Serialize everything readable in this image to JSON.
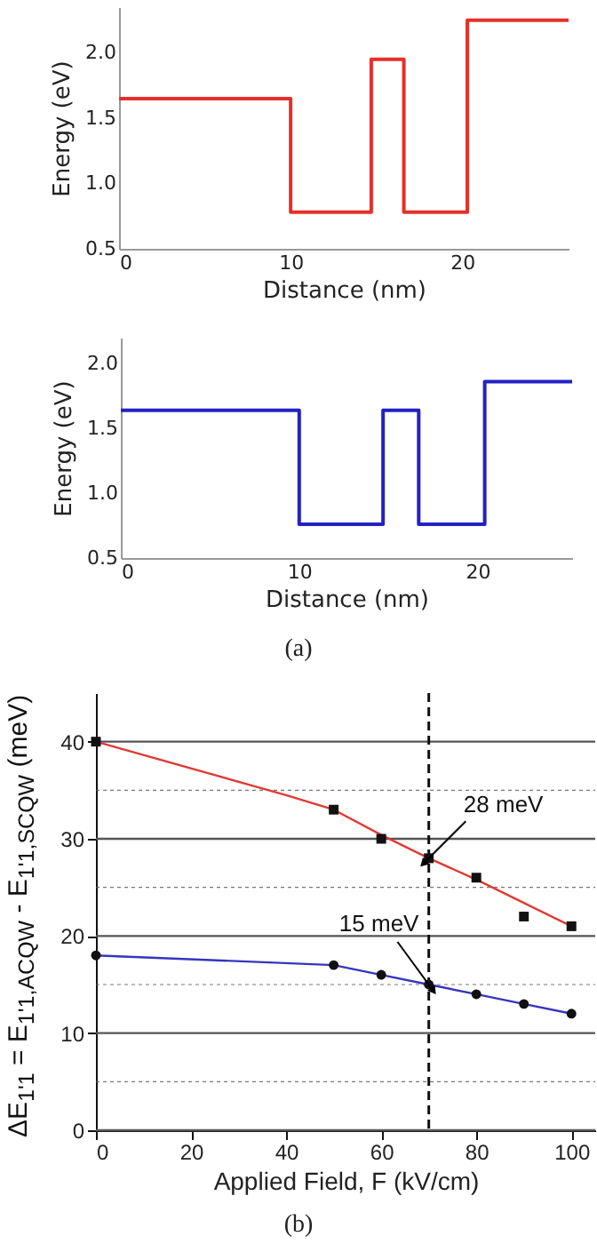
{
  "chart_data": [
    {
      "type": "step",
      "x": [
        0,
        10,
        14.7,
        16.6,
        20.3,
        26.2
      ],
      "xlabel": "Distance (nm)",
      "ylabel": "Energy (eV)",
      "series": [
        {
          "color": "#e5302a",
          "values": [
            1.65,
            0.78,
            1.95,
            0.78,
            2.25,
            2.25
          ]
        }
      ],
      "xlim": [
        0,
        26.2
      ],
      "xticks": [
        0,
        10,
        20
      ],
      "ylim": [
        0.5,
        2.35
      ],
      "yticks": [
        0.5,
        {
          "value": 1,
          "label": "1.0"
        },
        1.5,
        {
          "value": 2,
          "label": "2.0"
        }
      ]
    },
    {
      "type": "step",
      "x": [
        0,
        10,
        14.7,
        16.7,
        20.4,
        25.3
      ],
      "xlabel": "Distance (nm)",
      "ylabel": "Energy (eV)",
      "series": [
        {
          "color": "#2222c4",
          "values": [
            1.64,
            0.76,
            1.64,
            0.76,
            1.86,
            1.86
          ]
        }
      ],
      "xlim": [
        0,
        25.3
      ],
      "xticks": [
        0,
        10,
        20
      ],
      "ylim": [
        0.5,
        2.2
      ],
      "yticks": [
        0.5,
        {
          "value": 1,
          "label": "1.0"
        },
        1.5,
        {
          "value": 2,
          "label": "2.0"
        }
      ],
      "annotations": [
        "(a)"
      ]
    },
    {
      "type": "line",
      "xlabel": "Applied Field, F (kV/cm)",
      "ylabel": "ΔE$_{1'1}$ = E$_{1'1,ACQW}$ - E$_{1'1,SCQW}$ (meV)",
      "series": [
        {
          "color": "#e03a35",
          "marker": "none",
          "x": [
            0,
            40,
            50,
            60,
            70,
            80,
            90,
            100
          ],
          "values": [
            40,
            34.5,
            33,
            30.4,
            28,
            25.8,
            23.4,
            21
          ]
        },
        {
          "color": "#3535c0",
          "marker": "none",
          "x": [
            0,
            50,
            60,
            70,
            80,
            90,
            100
          ],
          "values": [
            18,
            17,
            16,
            15,
            14,
            13,
            12
          ]
        },
        {
          "type": "scatter",
          "color": "#111111",
          "marker": "square",
          "x": [
            0,
            50,
            60,
            70,
            80,
            90,
            100
          ],
          "values": [
            40,
            33,
            30,
            28,
            26,
            22,
            21
          ]
        },
        {
          "type": "scatter",
          "color": "#111111",
          "marker": "circle",
          "x": [
            0,
            50,
            60,
            70,
            80,
            90,
            100
          ],
          "values": [
            18,
            17,
            16,
            15,
            14,
            13,
            12
          ]
        }
      ],
      "xlim": [
        0,
        105
      ],
      "xticks": [
        0,
        20,
        40,
        60,
        80,
        100
      ],
      "ylim": [
        0,
        45
      ],
      "yticks": [
        0,
        {
          "value": 5,
          "label": null
        },
        10,
        {
          "value": 15,
          "label": null
        },
        20,
        {
          "value": 25,
          "label": null
        },
        30,
        {
          "value": 35,
          "label": null
        },
        40
      ],
      "grid": "y",
      "ref_lines": [
        {
          "axis": "x",
          "value": 70,
          "line_style": "dashed",
          "color": "#111111"
        }
      ],
      "annotations": [
        {
          "text": "28 meV",
          "x": 70,
          "y": 28
        },
        {
          "text": "15 meV",
          "x": 70,
          "y": 15
        },
        "(b)"
      ]
    }
  ]
}
